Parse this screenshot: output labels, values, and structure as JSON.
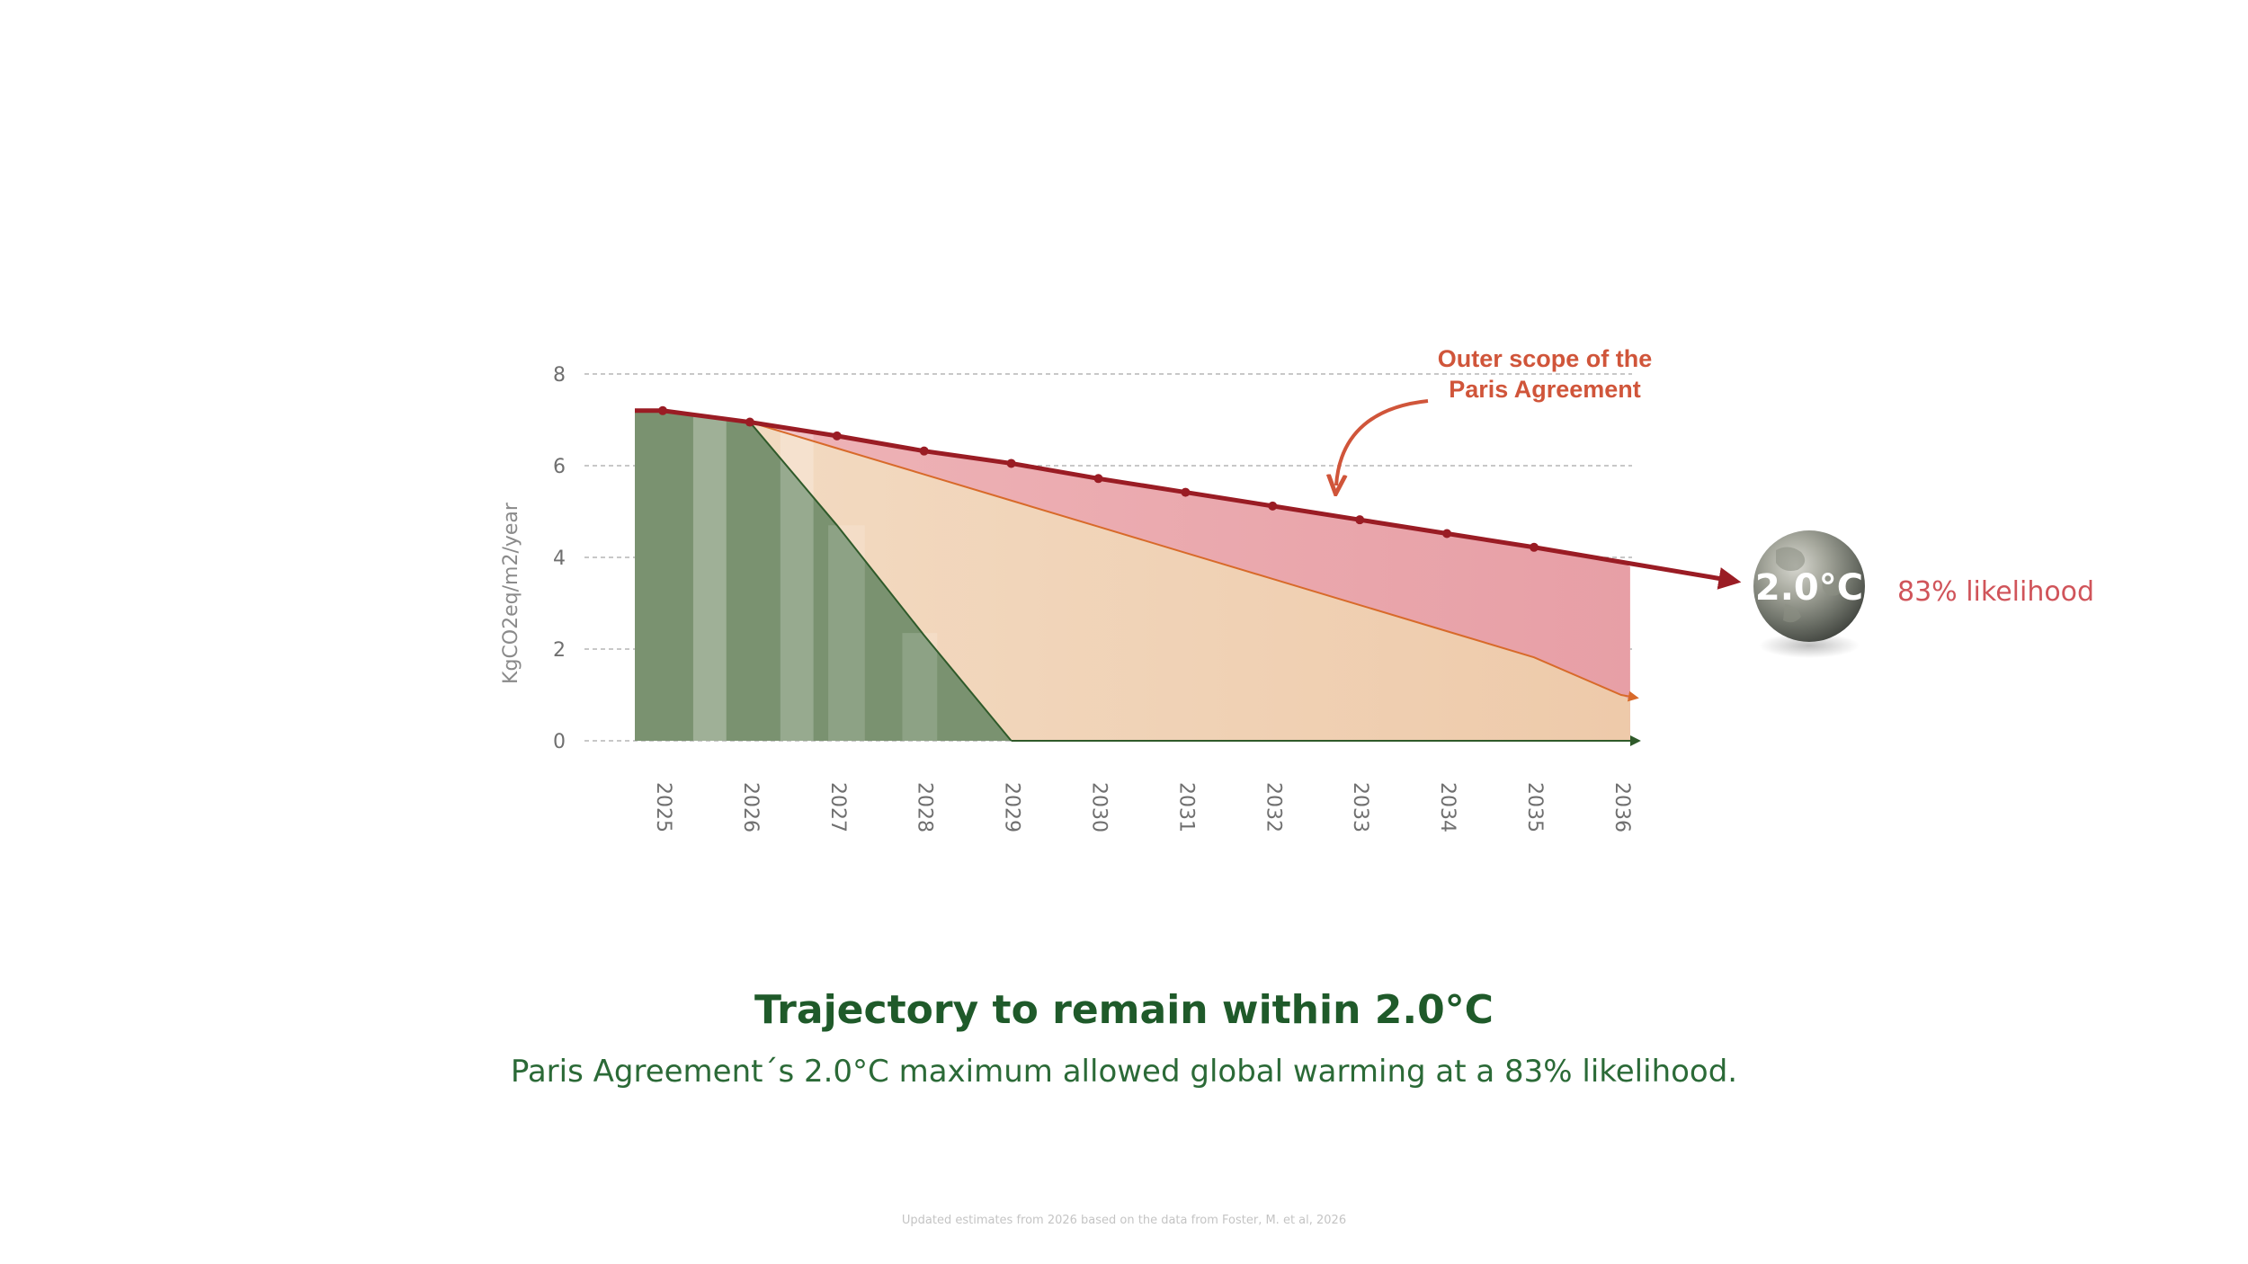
{
  "chart_data": {
    "type": "area",
    "ylabel": "KgCO2eq/m2/year",
    "xlabel": "",
    "ylim": [
      0,
      8
    ],
    "yticks": [
      0,
      2,
      4,
      6,
      8
    ],
    "grid": true,
    "categories": [
      "2025",
      "2026",
      "2027",
      "2028",
      "2029",
      "2030",
      "2031",
      "2032",
      "2033",
      "2034",
      "2035",
      "2036"
    ],
    "series": [
      {
        "name": "",
        "style": "thick line with markers and arrow",
        "color": "#9a1c24",
        "values": [
          7.2,
          6.95,
          6.65,
          6.32,
          6.05,
          5.72,
          5.42,
          5.12,
          4.82,
          4.52,
          4.22,
          3.9
        ]
      },
      {
        "name": "",
        "style": "thin line",
        "color": "#d86a2a",
        "values": [
          7.2,
          6.95,
          6.38,
          5.81,
          5.24,
          4.67,
          4.1,
          3.53,
          2.96,
          2.39,
          1.82,
          1.0
        ]
      },
      {
        "name": "",
        "style": "filled area",
        "color": "#7a9270",
        "values": [
          7.2,
          6.95,
          4.7,
          2.3,
          0,
          0,
          0,
          0,
          0,
          0,
          0,
          0
        ]
      }
    ],
    "annotations": [
      {
        "text_lines": [
          "Outer scope of the",
          "Paris Agreement"
        ],
        "color": "#d0553a"
      }
    ]
  },
  "badge": {
    "label": "2.0°C",
    "likelihood": "83% likelihood"
  },
  "caption": {
    "title": "Trajectory to remain within 2.0°C",
    "subtitle": "Paris Agreement´s 2.0°C maximum allowed global warming at a 83% likelihood.",
    "footnote": "Updated estimates from 2026 based on the data from Foster, M. et al, 2026"
  },
  "colors": {
    "title": "#1f5a2a",
    "scope_area": "#e8a2a8",
    "reduction_area": "#f0cfae",
    "green_area": "#7a9270",
    "red_line": "#9a1c24",
    "orange_line": "#d86a2a",
    "likelihood": "#d0545a"
  }
}
